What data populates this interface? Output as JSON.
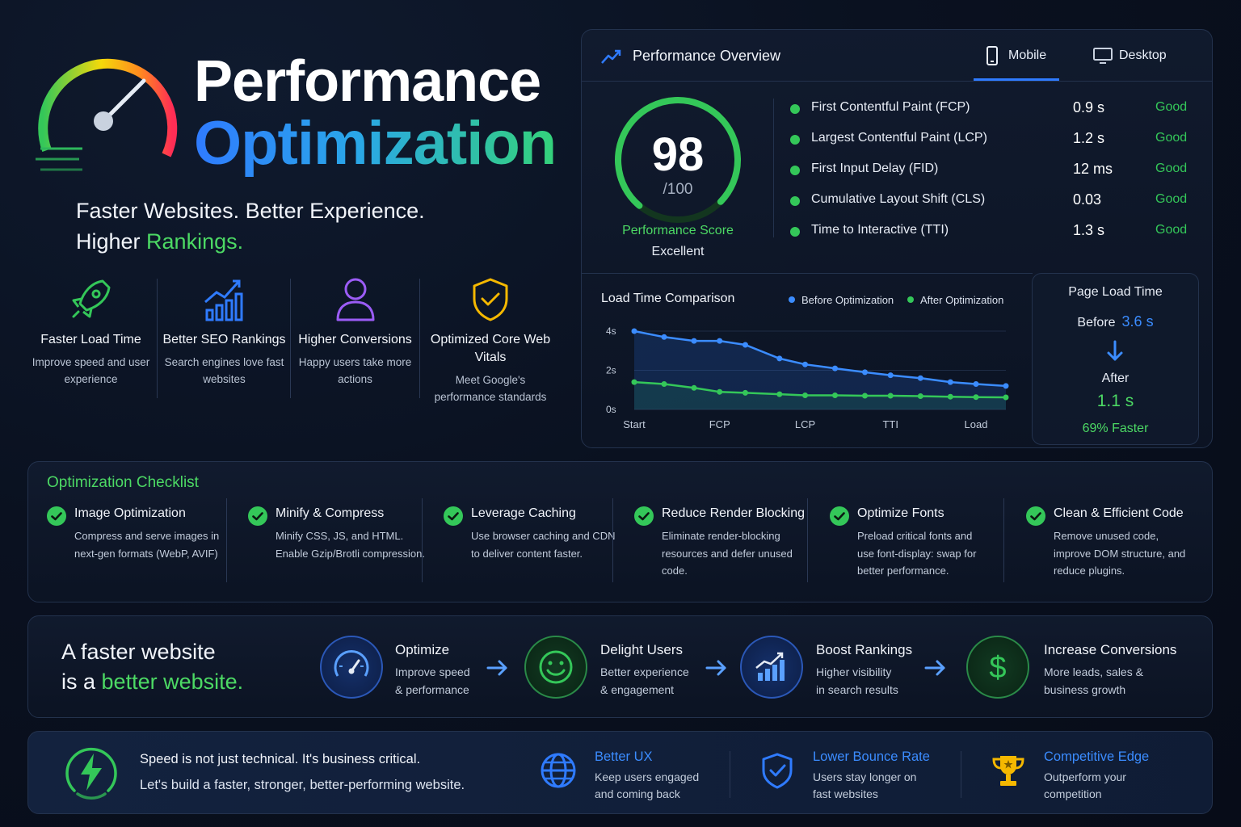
{
  "hero": {
    "title_line1": "Performance",
    "title_line2": "Optimization",
    "tagline_line1": "Faster Websites. Better Experience.",
    "tagline_line2_prefix": "Higher ",
    "tagline_line2_highlight": "Rankings."
  },
  "features": [
    {
      "icon": "rocket-icon",
      "title": "Faster Load Time",
      "desc": "Improve speed and user experience"
    },
    {
      "icon": "bar-chart-growth-icon",
      "title": "Better SEO Rankings",
      "desc": "Search engines love fast websites"
    },
    {
      "icon": "user-icon",
      "title": "Higher Conversions",
      "desc": "Happy users take more actions"
    },
    {
      "icon": "shield-check-icon",
      "title": "Optimized Core Web Vitals",
      "desc": "Meet Google's performance standards"
    }
  ],
  "overview": {
    "title": "Performance Overview",
    "tabs": [
      {
        "label": "Mobile",
        "icon": "phone-icon",
        "active": true
      },
      {
        "label": "Desktop",
        "icon": "monitor-icon",
        "active": false
      }
    ],
    "score": {
      "value": "98",
      "max": "/100",
      "label": "Performance Score",
      "rating": "Excellent",
      "fraction": 0.98
    },
    "metrics": [
      {
        "name": "First Contentful Paint (FCP)",
        "value": "0.9 s",
        "status": "Good"
      },
      {
        "name": "Largest Contentful Paint (LCP)",
        "value": "1.2 s",
        "status": "Good"
      },
      {
        "name": "First Input Delay (FID)",
        "value": "12 ms",
        "status": "Good"
      },
      {
        "name": "Cumulative Layout Shift (CLS)",
        "value": "0.03",
        "status": "Good"
      },
      {
        "name": "Time to Interactive (TTI)",
        "value": "1.3 s",
        "status": "Good"
      }
    ]
  },
  "chart_data": {
    "type": "line",
    "title": "Load Time Comparison",
    "x_ticks": [
      "Start",
      "FCP",
      "LCP",
      "TTI",
      "Load"
    ],
    "y_ticks": [
      "4s",
      "2s",
      "0s"
    ],
    "ylim": [
      0,
      4
    ],
    "x": [
      0,
      0.35,
      0.7,
      1.0,
      1.3,
      1.7,
      2.0,
      2.35,
      2.7,
      3.0,
      3.35,
      3.7,
      4.0,
      4.35
    ],
    "series": [
      {
        "name": "Before Optimization",
        "color": "#3b8cff",
        "values": [
          4.0,
          3.7,
          3.5,
          3.5,
          3.3,
          2.6,
          2.3,
          2.1,
          1.9,
          1.75,
          1.6,
          1.4,
          1.3,
          1.2
        ]
      },
      {
        "name": "After Optimization",
        "color": "#34c759",
        "values": [
          1.4,
          1.3,
          1.1,
          0.9,
          0.85,
          0.78,
          0.72,
          0.72,
          0.7,
          0.7,
          0.68,
          0.65,
          0.63,
          0.62
        ]
      }
    ],
    "grid": true,
    "legend": "top-right"
  },
  "page_load": {
    "title": "Page Load Time",
    "before_label": "Before",
    "before_value": "3.6 s",
    "after_label": "After",
    "after_value": "1.1 s",
    "improvement": "69% Faster"
  },
  "checklist": {
    "title": "Optimization Checklist",
    "items": [
      {
        "title": "Image Optimization",
        "desc": "Compress and serve images in next-gen formats (WebP, AVIF)"
      },
      {
        "title": "Minify & Compress",
        "desc": "Minify CSS, JS, and HTML. Enable Gzip/Brotli compression."
      },
      {
        "title": "Leverage Caching",
        "desc": "Use browser caching and CDN to deliver content faster."
      },
      {
        "title": "Reduce Render Blocking",
        "desc": "Eliminate render-blocking resources and defer unused code."
      },
      {
        "title": "Optimize Fonts",
        "desc": "Preload critical fonts and use font-display: swap for better performance."
      },
      {
        "title": "Clean & Efficient Code",
        "desc": "Remove unused code, improve DOM structure, and reduce plugins."
      }
    ]
  },
  "flow": {
    "line1": "A faster website",
    "line2_prefix": "is a ",
    "line2_highlight": "better website.",
    "steps": [
      {
        "icon": "speedometer-icon",
        "title": "Optimize",
        "desc1": "Improve speed",
        "desc2": "& performance"
      },
      {
        "icon": "smiley-icon",
        "title": "Delight Users",
        "desc1": "Better experience",
        "desc2": "& engagement"
      },
      {
        "icon": "growth-chart-icon",
        "title": "Boost Rankings",
        "desc1": "Higher visibility",
        "desc2": "in search results"
      },
      {
        "icon": "dollar-icon",
        "title": "Increase Conversions",
        "desc1": "More leads, sales &",
        "desc2": "business growth"
      }
    ]
  },
  "bottom": {
    "line1": "Speed is not just technical. It's business critical.",
    "line2": "Let's build a faster, stronger, better-performing website.",
    "benefits": [
      {
        "icon": "globe-icon",
        "title": "Better UX",
        "desc1": "Keep users engaged",
        "desc2": "and coming back"
      },
      {
        "icon": "shield-icon",
        "title": "Lower Bounce Rate",
        "desc1": "Users stay longer on",
        "desc2": "fast websites"
      },
      {
        "icon": "trophy-icon",
        "title": "Competitive Edge",
        "desc1": "Outperform your",
        "desc2": "competition"
      }
    ]
  },
  "colors": {
    "accent_blue": "#2f7bff",
    "accent_green": "#34c759",
    "background": "#0a1120"
  }
}
